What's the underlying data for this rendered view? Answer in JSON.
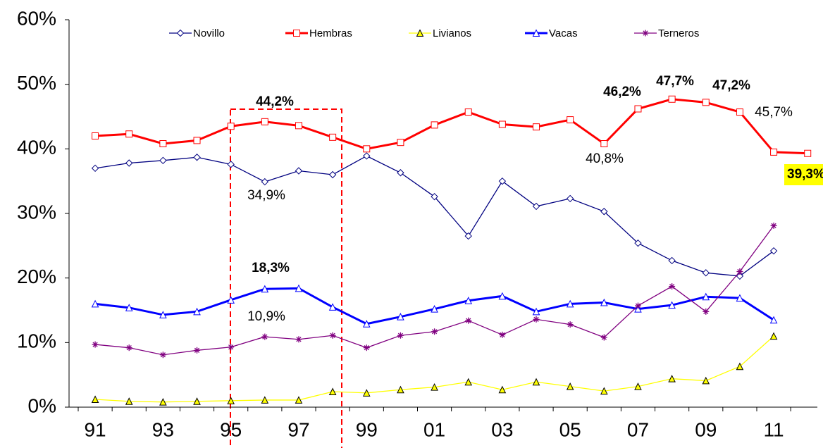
{
  "chart_data": {
    "type": "line",
    "categories": [
      "91",
      null,
      "93",
      null,
      "95",
      null,
      "97",
      null,
      "99",
      null,
      "01",
      null,
      "03",
      null,
      "05",
      null,
      "07",
      null,
      "09",
      null,
      "11",
      null
    ],
    "series": [
      {
        "name": "Novillo",
        "color": "#000080",
        "marker": "diamond",
        "values": [
          37.0,
          37.8,
          38.2,
          38.7,
          37.6,
          34.9,
          36.6,
          36.0,
          38.9,
          36.3,
          32.6,
          26.5,
          35.0,
          31.1,
          32.3,
          30.3,
          25.4,
          22.7,
          20.8,
          20.3,
          24.2,
          null
        ]
      },
      {
        "name": "Hembras",
        "color": "#ff0000",
        "marker": "square",
        "values": [
          42.0,
          42.3,
          40.8,
          41.3,
          43.5,
          44.2,
          43.6,
          41.8,
          40.0,
          41.0,
          43.7,
          45.7,
          43.8,
          43.4,
          44.5,
          40.8,
          46.2,
          47.7,
          47.2,
          45.7,
          39.5,
          39.3
        ]
      },
      {
        "name": "Livianos",
        "color": "#ffff00",
        "marker": "triangle-filled",
        "values": [
          1.2,
          0.9,
          0.8,
          0.9,
          1.0,
          1.1,
          1.1,
          2.4,
          2.2,
          2.7,
          3.1,
          3.9,
          2.7,
          3.9,
          3.2,
          2.5,
          3.2,
          4.4,
          4.1,
          6.3,
          11.0,
          null
        ]
      },
      {
        "name": "Vacas",
        "color": "#0000ff",
        "marker": "triangle",
        "values": [
          16.0,
          15.4,
          14.3,
          14.8,
          16.6,
          18.3,
          18.4,
          15.5,
          12.9,
          14.0,
          15.2,
          16.5,
          17.2,
          14.8,
          16.0,
          16.2,
          15.2,
          15.8,
          17.1,
          16.9,
          13.5,
          null
        ]
      },
      {
        "name": "Terneros",
        "color": "#800080",
        "marker": "star",
        "values": [
          9.7,
          9.2,
          8.1,
          8.8,
          9.3,
          10.9,
          10.5,
          11.1,
          9.2,
          11.1,
          11.7,
          13.4,
          11.2,
          13.6,
          12.8,
          10.8,
          15.7,
          18.7,
          14.8,
          21.0,
          28.1,
          null
        ]
      }
    ],
    "ylim": [
      0,
      60
    ],
    "yticks": [
      {
        "value": 0,
        "label": "0%"
      },
      {
        "value": 10,
        "label": "10%"
      },
      {
        "value": 20,
        "label": "20%"
      },
      {
        "value": 30,
        "label": "30%"
      },
      {
        "value": 40,
        "label": "40%"
      },
      {
        "value": 50,
        "label": "50%"
      },
      {
        "value": 60,
        "label": "60%"
      }
    ],
    "legend": "top",
    "annotations": [
      {
        "text": "44,2%"
      },
      {
        "text": "34,9%"
      },
      {
        "text": "18,3%"
      },
      {
        "text": "10,9%"
      },
      {
        "text": "46,2%"
      },
      {
        "text": "47,7%"
      },
      {
        "text": "47,2%"
      },
      {
        "text": "45,7%"
      },
      {
        "text": "40,8%"
      },
      {
        "text": "39,3%"
      }
    ]
  }
}
